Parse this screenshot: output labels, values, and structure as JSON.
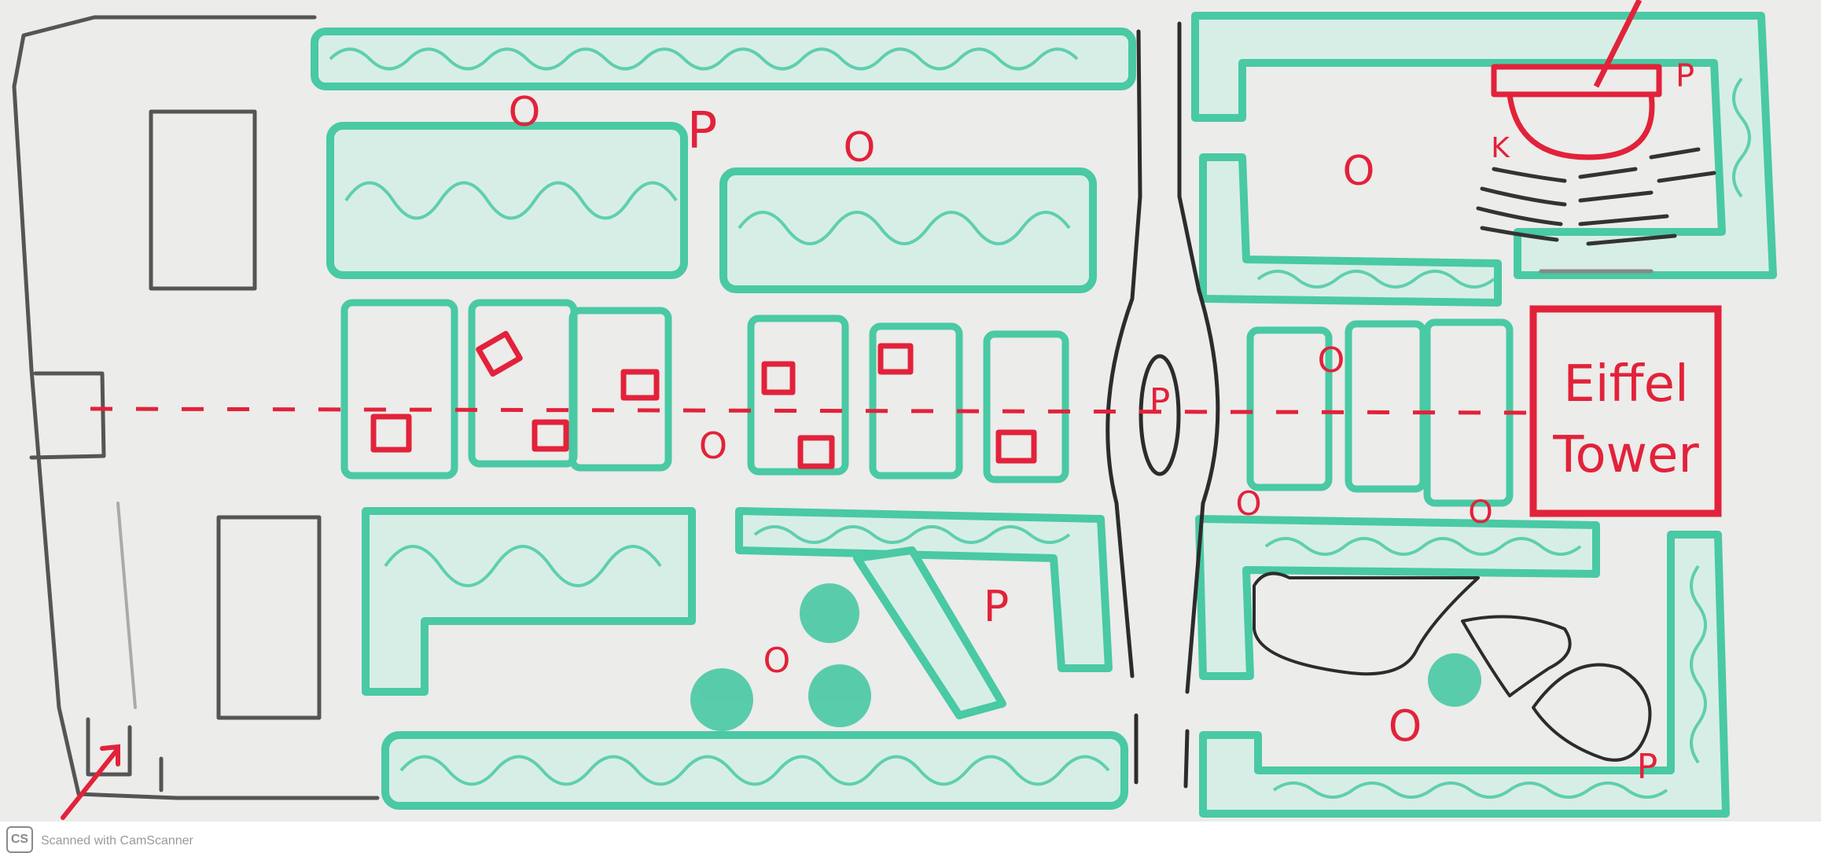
{
  "colors": {
    "board": "#ececea",
    "hedge": "#49c9a4",
    "hedge_fill": "#d7eee6",
    "red": "#e2223a",
    "ink": "#333333"
  },
  "map": {
    "landmark_label_line1": "Eiffel",
    "landmark_label_line2": "Tower",
    "letter_p": "P",
    "letter_k": "K",
    "marker_o": "O"
  },
  "footer": {
    "logo": "CS",
    "text": "Scanned with CamScanner"
  },
  "icons": [
    "path-arrow-icon",
    "entrance-arrow-icon",
    "red-square-marker-icon",
    "red-circle-marker-icon",
    "tree-icon"
  ]
}
